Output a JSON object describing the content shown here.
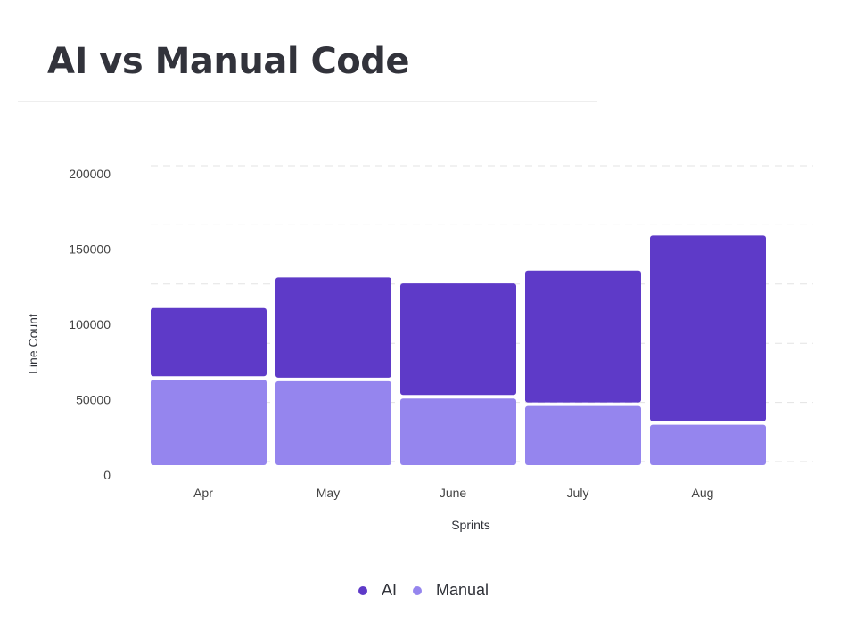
{
  "title": "AI vs Manual Code",
  "chart_data": {
    "type": "bar",
    "stacked": true,
    "categories": [
      "Apr",
      "May",
      "June",
      "July",
      "Aug"
    ],
    "series": [
      {
        "name": "Manual",
        "color": "#9585ee",
        "values": [
          57000,
          56000,
          44500,
          39500,
          27000
        ]
      },
      {
        "name": "AI",
        "color": "#5e3ac8",
        "values": [
          45500,
          67000,
          74500,
          88000,
          124000
        ]
      }
    ],
    "xlabel": "Sprints",
    "ylabel": "Line Count",
    "yticks": [
      0,
      50000,
      100000,
      150000,
      200000
    ],
    "ylim": [
      0,
      200000
    ],
    "grid": true,
    "legend_position": "bottom",
    "legend": [
      {
        "name": "AI",
        "color": "#5e3ac8"
      },
      {
        "name": "Manual",
        "color": "#9585ee"
      }
    ]
  }
}
